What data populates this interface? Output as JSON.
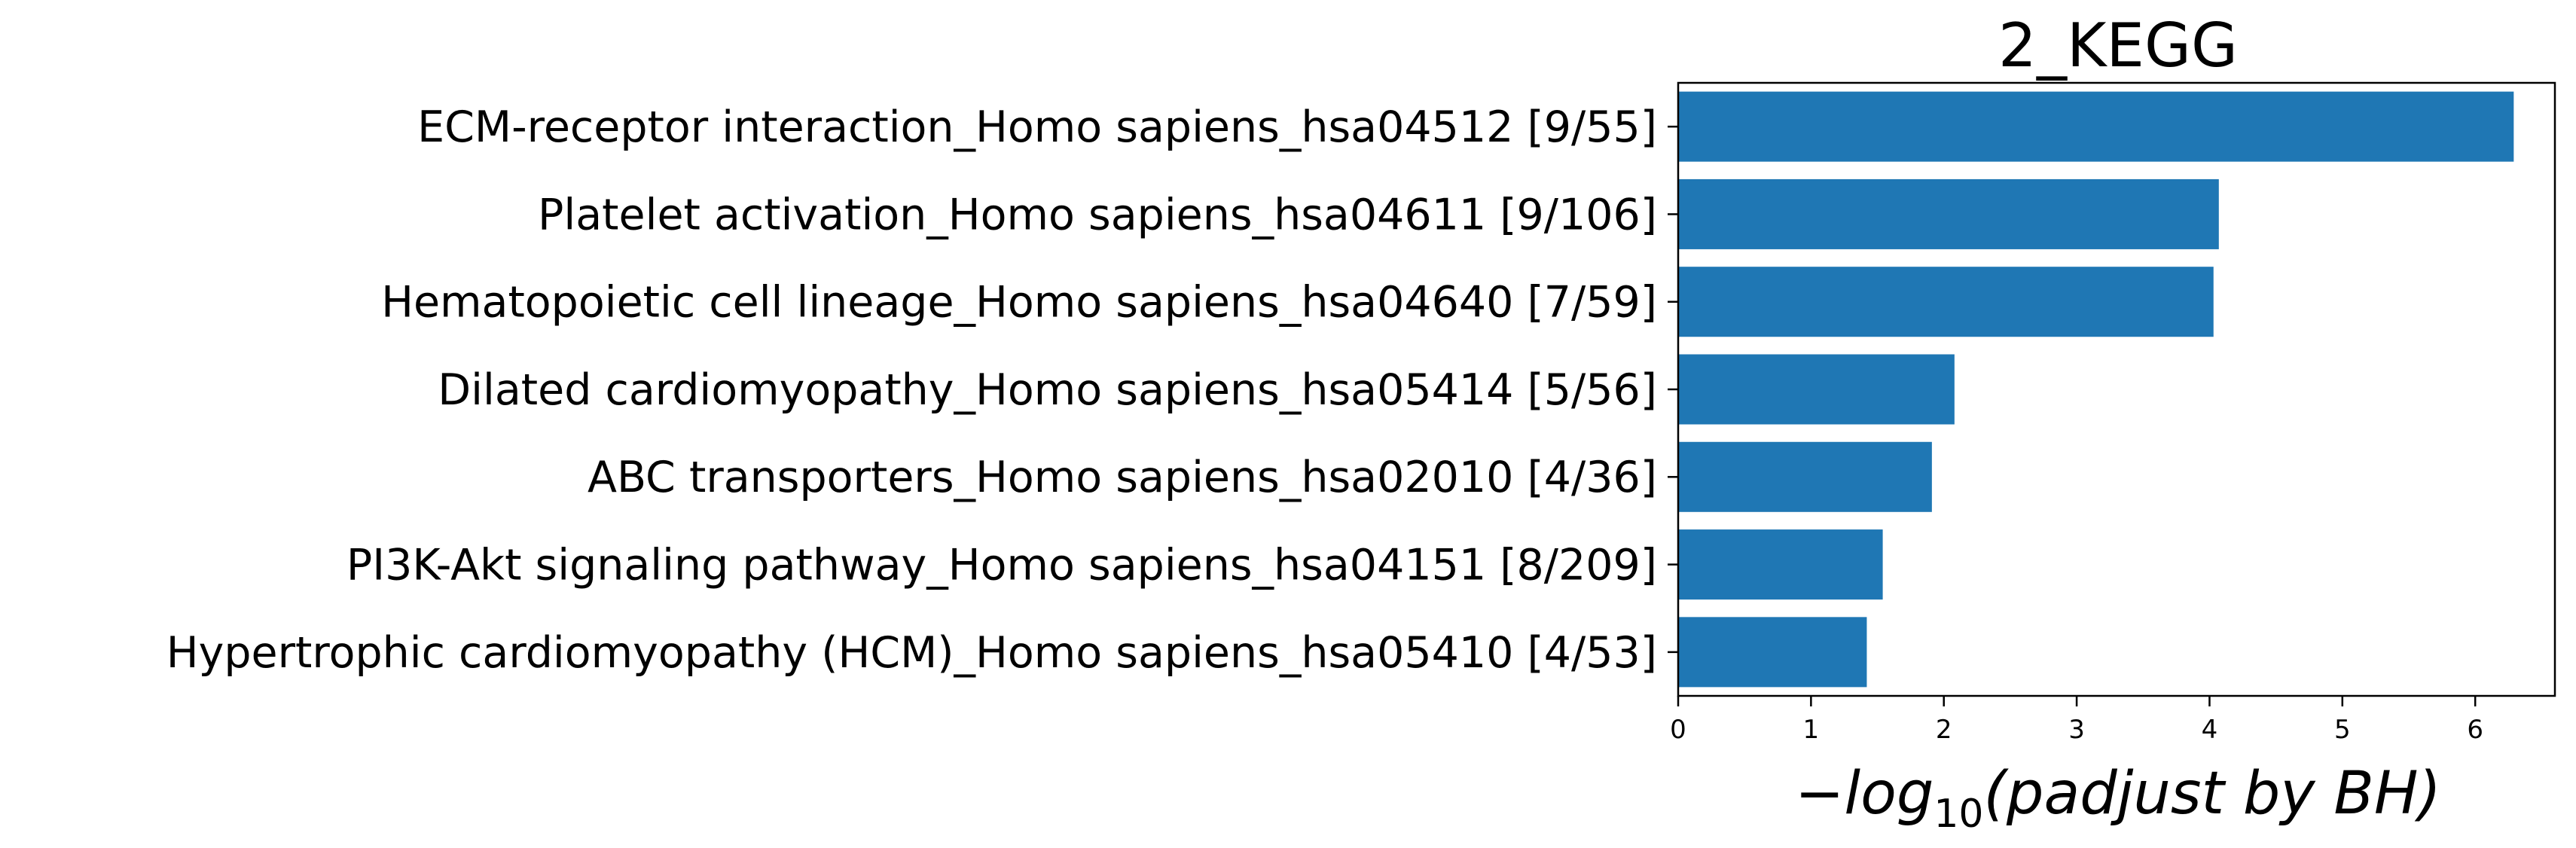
{
  "chart_data": {
    "type": "bar",
    "orientation": "horizontal",
    "title": "2_KEGG",
    "xlabel": {
      "prefix": "−",
      "log": "log",
      "base": "10",
      "term": "(padjust by BH)"
    },
    "ylabel": "",
    "xlim": [
      0,
      6.6
    ],
    "xticks": [
      0,
      1,
      2,
      3,
      4,
      5,
      6
    ],
    "categories": [
      "ECM-receptor interaction_Homo sapiens_hsa04512 [9/55]",
      "Platelet activation_Homo sapiens_hsa04611 [9/106]",
      "Hematopoietic cell lineage_Homo sapiens_hsa04640 [7/59]",
      "Dilated cardiomyopathy_Homo sapiens_hsa05414 [5/56]",
      "ABC transporters_Homo sapiens_hsa02010 [4/36]",
      "PI3K-Akt signaling pathway_Homo sapiens_hsa04151 [8/209]",
      "Hypertrophic cardiomyopathy (HCM)_Homo sapiens_hsa05410 [4/53]"
    ],
    "values": [
      6.29,
      4.07,
      4.03,
      2.08,
      1.91,
      1.54,
      1.42
    ],
    "bar_color": "#1f77b4",
    "grid": false,
    "legend": "none"
  }
}
